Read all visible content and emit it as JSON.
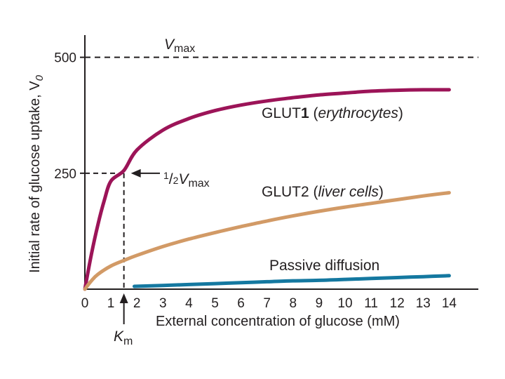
{
  "chart_data": {
    "type": "line",
    "title": "",
    "xlabel": "External concentration of glucose (mM)",
    "ylabel": "Initial rate of glucose uptake, V",
    "ylabel_subscript": "0",
    "xlim": [
      0,
      15
    ],
    "ylim": [
      0,
      560
    ],
    "xticks": [
      0,
      1,
      2,
      3,
      4,
      5,
      6,
      7,
      8,
      9,
      10,
      11,
      12,
      13,
      14
    ],
    "yticks": [
      250,
      500
    ],
    "grid": false,
    "vmax": {
      "value": 500,
      "label_v": "V",
      "label_sub": "max"
    },
    "half_vmax": {
      "value": 250,
      "label_num": "1",
      "label_slash": "/",
      "label_den": "2",
      "label_v": "V",
      "label_sub": "max"
    },
    "km": {
      "value": 1.5,
      "label_k": "K",
      "label_sub": "m"
    },
    "series": [
      {
        "name": "GLUT1",
        "label_main": "GLUT",
        "label_num": "1",
        "label_open": " (",
        "label_cell": "erythrocytes",
        "label_close": ")",
        "color": "#9c1458",
        "x": [
          0,
          0.25,
          0.5,
          0.75,
          1,
          1.5,
          2,
          3,
          4,
          5,
          6,
          7,
          8,
          9,
          10,
          11,
          12,
          13,
          14
        ],
        "values": [
          0,
          75,
          139,
          192,
          233,
          256,
          300,
          343,
          368,
          385,
          397,
          406,
          413,
          419,
          423,
          427,
          429,
          430,
          430
        ]
      },
      {
        "name": "GLUT2",
        "label_main": "GLUT2",
        "label_open": " (",
        "label_cell": "liver cells",
        "label_close": ")",
        "color": "#d29a66",
        "x": [
          0,
          0.25,
          0.5,
          1,
          1.5,
          2,
          3,
          4,
          5,
          6,
          7,
          8,
          9,
          10,
          11,
          12,
          13,
          14
        ],
        "values": [
          0,
          18,
          32,
          50,
          62,
          73,
          92,
          108,
          122,
          135,
          147,
          158,
          168,
          177,
          185,
          193,
          201,
          208
        ]
      },
      {
        "name": "Passive diffusion",
        "label_main": "Passive diffusion",
        "color": "#1478a0",
        "x": [
          1.9,
          3,
          4,
          5,
          6,
          7,
          8,
          9,
          10,
          11,
          12,
          13,
          14
        ],
        "values": [
          6,
          8,
          10,
          12,
          14,
          16,
          18,
          19,
          21,
          23,
          25,
          27,
          29
        ]
      }
    ]
  }
}
